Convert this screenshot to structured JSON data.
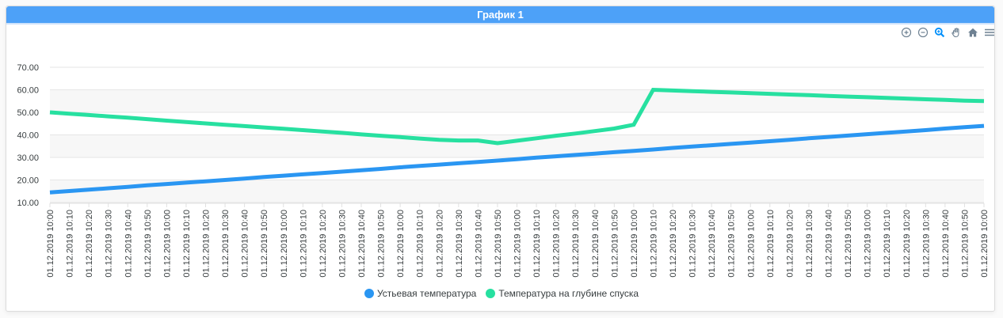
{
  "panel": {
    "title": "График 1"
  },
  "toolbar": {
    "buttons": [
      {
        "name": "zoom-in-icon",
        "glyph": "plus-circle"
      },
      {
        "name": "zoom-out-icon",
        "glyph": "minus-circle"
      },
      {
        "name": "selection-zoom-icon",
        "glyph": "magnifier",
        "active": true
      },
      {
        "name": "pan-icon",
        "glyph": "hand"
      },
      {
        "name": "reset-zoom-icon",
        "glyph": "home"
      },
      {
        "name": "menu-icon",
        "glyph": "hamburger"
      }
    ]
  },
  "colors": {
    "header_bg": "#4da1f8",
    "series1": "#2a96f2",
    "series2": "#27e0a0",
    "grid": "#e6e6e6",
    "band": "#f7f7f7",
    "axis_text": "#373d3f",
    "toolbar_icon": "#6e8192",
    "toolbar_active": "#008ffb"
  },
  "legend": [
    {
      "label": "Устьевая температура",
      "color": "#2a96f2"
    },
    {
      "label": "Температура на глубине спуска",
      "color": "#27e0a0"
    }
  ],
  "chart_data": {
    "type": "line",
    "title": "График 1",
    "xlabel": "",
    "ylabel": "",
    "ylim": [
      10,
      70
    ],
    "yticks": [
      "10.00",
      "20.00",
      "30.00",
      "40.00",
      "50.00",
      "60.00",
      "70.00"
    ],
    "grid": true,
    "legend_position": "bottom",
    "categories": [
      "01.12.2019 10:00",
      "01.12.2019 10:10",
      "01.12.2019 10:20",
      "01.12.2019 10:30",
      "01.12.2019 10:40",
      "01.12.2019 10:50",
      "01.12.2019 10:00",
      "01.12.2019 10:10",
      "01.12.2019 10:20",
      "01.12.2019 10:30",
      "01.12.2019 10:40",
      "01.12.2019 10:50",
      "01.12.2019 10:00",
      "01.12.2019 10:10",
      "01.12.2019 10:20",
      "01.12.2019 10:30",
      "01.12.2019 10:40",
      "01.12.2019 10:50",
      "01.12.2019 10:00",
      "01.12.2019 10:10",
      "01.12.2019 10:20",
      "01.12.2019 10:30",
      "01.12.2019 10:40",
      "01.12.2019 10:50",
      "01.12.2019 10:00",
      "01.12.2019 10:10",
      "01.12.2019 10:20",
      "01.12.2019 10:30",
      "01.12.2019 10:40",
      "01.12.2019 10:50",
      "01.12.2019 10:00",
      "01.12.2019 10:10",
      "01.12.2019 10:20",
      "01.12.2019 10:30",
      "01.12.2019 10:40",
      "01.12.2019 10:50",
      "01.12.2019 10:00",
      "01.12.2019 10:10",
      "01.12.2019 10:20",
      "01.12.2019 10:30",
      "01.12.2019 10:40",
      "01.12.2019 10:50",
      "01.12.2019 10:00",
      "01.12.2019 10:10",
      "01.12.2019 10:20",
      "01.12.2019 10:30",
      "01.12.2019 10:40",
      "01.12.2019 10:50",
      "01.12.2019 10:00"
    ],
    "series": [
      {
        "name": "Устьевая температура",
        "color": "#2a96f2",
        "values": [
          14.5,
          15.1,
          15.7,
          16.3,
          16.9,
          17.6,
          18.2,
          18.8,
          19.4,
          20.0,
          20.6,
          21.3,
          21.9,
          22.5,
          23.1,
          23.7,
          24.3,
          24.9,
          25.6,
          26.2,
          26.8,
          27.4,
          28.0,
          28.6,
          29.2,
          29.9,
          30.5,
          31.1,
          31.7,
          32.3,
          32.9,
          33.5,
          34.2,
          34.8,
          35.4,
          36.0,
          36.6,
          37.2,
          37.8,
          38.5,
          39.1,
          39.7,
          40.3,
          40.9,
          41.5,
          42.1,
          42.8,
          43.4,
          44.0
        ]
      },
      {
        "name": "Температура на глубине спуска",
        "color": "#27e0a0",
        "values": [
          50.0,
          49.4,
          48.8,
          48.2,
          47.6,
          47.0,
          46.3,
          45.7,
          45.1,
          44.5,
          43.9,
          43.3,
          42.7,
          42.1,
          41.5,
          40.9,
          40.2,
          39.6,
          39.0,
          38.4,
          37.8,
          37.5,
          37.5,
          36.3,
          37.4,
          38.5,
          39.6,
          40.6,
          41.7,
          42.8,
          44.5,
          60.0,
          59.7,
          59.4,
          59.1,
          58.8,
          58.5,
          58.2,
          57.9,
          57.6,
          57.3,
          57.0,
          56.7,
          56.4,
          56.1,
          55.8,
          55.5,
          55.2,
          55.0
        ]
      }
    ]
  }
}
